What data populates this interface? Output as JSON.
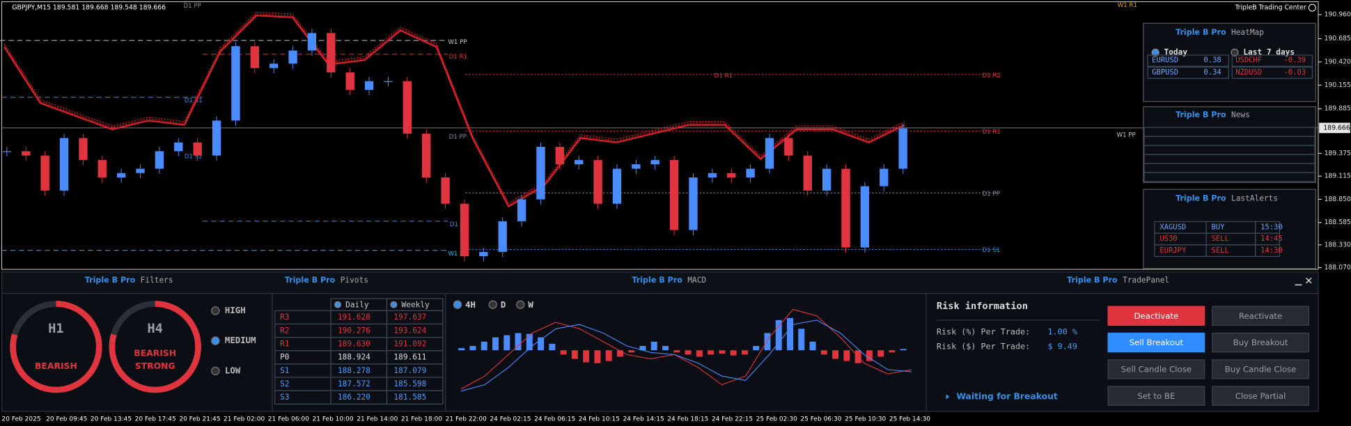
{
  "header": {
    "info": "GBPJPY,M15  189.581 189.668 189.548 189.666",
    "brand": "TripleB Trading Center"
  },
  "price_chart": {
    "ylim": [
      188.07,
      190.96
    ],
    "yticks": [
      {
        "value": 190.96,
        "label": "190.960"
      },
      190.685,
      {
        "value": 190.42,
        "label": "190.420"
      },
      190.155,
      189.885,
      189.375,
      189.115,
      {
        "value": 188.85,
        "label": "188.850"
      },
      188.585,
      {
        "value": 188.33,
        "label": "188.330"
      },
      {
        "value": 188.07,
        "label": "188.070"
      }
    ],
    "current_price": {
      "value": 189.666,
      "label": "189.666"
    },
    "close": [
      189.4,
      189.35,
      188.95,
      189.55,
      189.3,
      189.1,
      189.15,
      189.2,
      189.4,
      189.5,
      189.35,
      189.75,
      190.6,
      190.35,
      190.4,
      190.55,
      190.75,
      190.3,
      190.1,
      190.2,
      190.2,
      189.6,
      189.1,
      188.8,
      188.2,
      188.25,
      188.6,
      188.85,
      189.45,
      189.25,
      189.3,
      188.8,
      189.2,
      189.25,
      189.3,
      188.5,
      189.1,
      189.15,
      189.1,
      189.2,
      189.55,
      189.35,
      188.95,
      189.2,
      188.3,
      189.0,
      189.2,
      189.66
    ],
    "band": [
      190.59,
      189.95,
      189.8,
      189.65,
      189.75,
      189.7,
      190.54,
      190.95,
      190.93,
      190.39,
      190.44,
      190.78,
      190.59,
      189.55,
      188.77,
      189.01,
      189.55,
      189.5,
      189.6,
      189.7,
      189.7,
      189.31,
      189.65,
      189.65,
      189.5,
      189.7
    ],
    "pivot_lines": [
      {
        "label": "D1 R2",
        "value": 190.276,
        "color": "#e0343f"
      },
      {
        "label": "D1 R1",
        "value": 189.63,
        "color": "#e0343f"
      },
      {
        "label": "D1 PP",
        "value": 188.924,
        "color": "#8a8f98"
      },
      {
        "label": "D1 S1",
        "value": 188.278,
        "color": "#3a8ee8"
      }
    ],
    "older_labels": [
      {
        "label": "D1 PP",
        "color": "#8a8f98"
      },
      {
        "label": "W1 PP",
        "color": "#c8c8c8"
      },
      {
        "label": "D1 R1",
        "color": "#e0343f"
      },
      {
        "label": "D1 S1",
        "color": "#3a8ee8"
      },
      {
        "label": "D1 S2",
        "color": "#3a8ee8"
      },
      {
        "label": "D1 PP",
        "color": "#8a8f98"
      },
      {
        "label": "D1 S1",
        "color": "#3a8ee8"
      },
      {
        "label": "W1 S1",
        "color": "#3ab0e8"
      },
      {
        "label": "D1 R1",
        "color": "#e0343f"
      },
      {
        "label": "W1 R1",
        "color": "#e0a020"
      },
      {
        "label": "W1 PP",
        "color": "#c8c8c8"
      }
    ],
    "time_labels": [
      "20 Feb 2025",
      "20 Feb 09:45",
      "20 Feb 13:45",
      "20 Feb 17:45",
      "20 Feb 21:45",
      "21 Feb 02:00",
      "21 Feb 06:00",
      "21 Feb 10:00",
      "21 Feb 14:00",
      "21 Feb 18:00",
      "21 Feb 22:00",
      "24 Feb 02:15",
      "24 Feb 06:15",
      "24 Feb 10:15",
      "24 Feb 14:15",
      "24 Feb 18:15",
      "24 Feb 22:15",
      "25 Feb 02:30",
      "25 Feb 06:30",
      "25 Feb 10:30",
      "25 Feb 14:30"
    ]
  },
  "heatmap": {
    "brand": "Triple B Pro",
    "title": "HeatMap",
    "options": [
      "Today",
      "Last 7 days"
    ],
    "rows": [
      [
        "EURUSD",
        "0.38",
        "USDCHF",
        "-0.39"
      ],
      [
        "GBPUSD",
        "0.34",
        "NZDUSD",
        "-0.03"
      ]
    ]
  },
  "news": {
    "brand": "Triple B Pro",
    "title": "News"
  },
  "alerts": {
    "brand": "Triple B Pro",
    "title": "LastAlerts",
    "rows": [
      [
        "XAGUSD",
        "BUY",
        "15:30"
      ],
      [
        "US30",
        "SELL",
        "14:45"
      ],
      [
        "EURJPY",
        "SELL",
        "14:30"
      ]
    ]
  },
  "filters": {
    "brand": "Triple B Pro",
    "title": "Filters",
    "gauges": [
      {
        "timeframe": "H1",
        "state": [
          "BEARISH"
        ]
      },
      {
        "timeframe": "H4",
        "state": [
          "BEARISH",
          "STRONG"
        ]
      }
    ],
    "levels": [
      "HIGH",
      "MEDIUM",
      "LOW"
    ]
  },
  "pivots": {
    "brand": "Triple B Pro",
    "title": "Pivots",
    "columns": [
      "Daily",
      "Weekly"
    ],
    "rows": [
      [
        "R3",
        "191.628",
        "197.637"
      ],
      [
        "R2",
        "190.276",
        "193.624"
      ],
      [
        "R1",
        "189.630",
        "191.092"
      ],
      [
        "P0",
        "188.924",
        "189.611"
      ],
      [
        "S1",
        "188.278",
        "187.079"
      ],
      [
        "S2",
        "187.572",
        "185.598"
      ],
      [
        "S3",
        "186.220",
        "181.585"
      ]
    ]
  },
  "macd": {
    "brand": "Triple B Pro",
    "title": "MACD",
    "timeframes": [
      "4H",
      "D",
      "W"
    ],
    "ylim": [
      -1.2,
      1.2
    ],
    "histogram": [
      0.05,
      0.1,
      0.2,
      0.3,
      0.35,
      0.4,
      0.38,
      0.3,
      0.15,
      -0.1,
      -0.2,
      -0.28,
      -0.3,
      -0.25,
      -0.15,
      -0.05,
      0.1,
      0.2,
      0.1,
      -0.05,
      -0.1,
      -0.15,
      -0.1,
      -0.08,
      -0.12,
      -0.1,
      0.1,
      0.4,
      0.7,
      0.75,
      0.5,
      0.2,
      -0.1,
      -0.2,
      -0.25,
      -0.3,
      -0.25,
      -0.15,
      -0.05,
      0.03
    ],
    "main": [
      -0.9,
      -0.6,
      -0.1,
      0.4,
      0.65,
      0.5,
      0.2,
      -0.1,
      -0.2,
      -0.1,
      -0.4,
      -0.8,
      -0.6,
      0.3,
      0.95,
      0.8,
      0.3,
      -0.3,
      -0.55,
      -0.45
    ],
    "signal": [
      -0.95,
      -0.8,
      -0.4,
      0.1,
      0.5,
      0.6,
      0.4,
      0.1,
      -0.05,
      -0.1,
      -0.3,
      -0.6,
      -0.7,
      -0.1,
      0.6,
      0.7,
      0.4,
      -0.1,
      -0.45,
      -0.5
    ]
  },
  "trade_panel": {
    "brand": "Triple B Pro",
    "title": "TradePanel",
    "risk_title": "Risk information",
    "risk_rows": [
      [
        "Risk (%) Per Trade:",
        "1.00 %"
      ],
      [
        "Risk ($) Per Trade:",
        "$ 9.49"
      ]
    ],
    "status": "Waiting for Breakout",
    "buttons": [
      "Deactivate",
      "Reactivate",
      "Sell Breakout",
      "Buy Breakout",
      "Sell Candle Close",
      "Buy Candle Close",
      "Set to BE",
      "Close Partial"
    ]
  }
}
